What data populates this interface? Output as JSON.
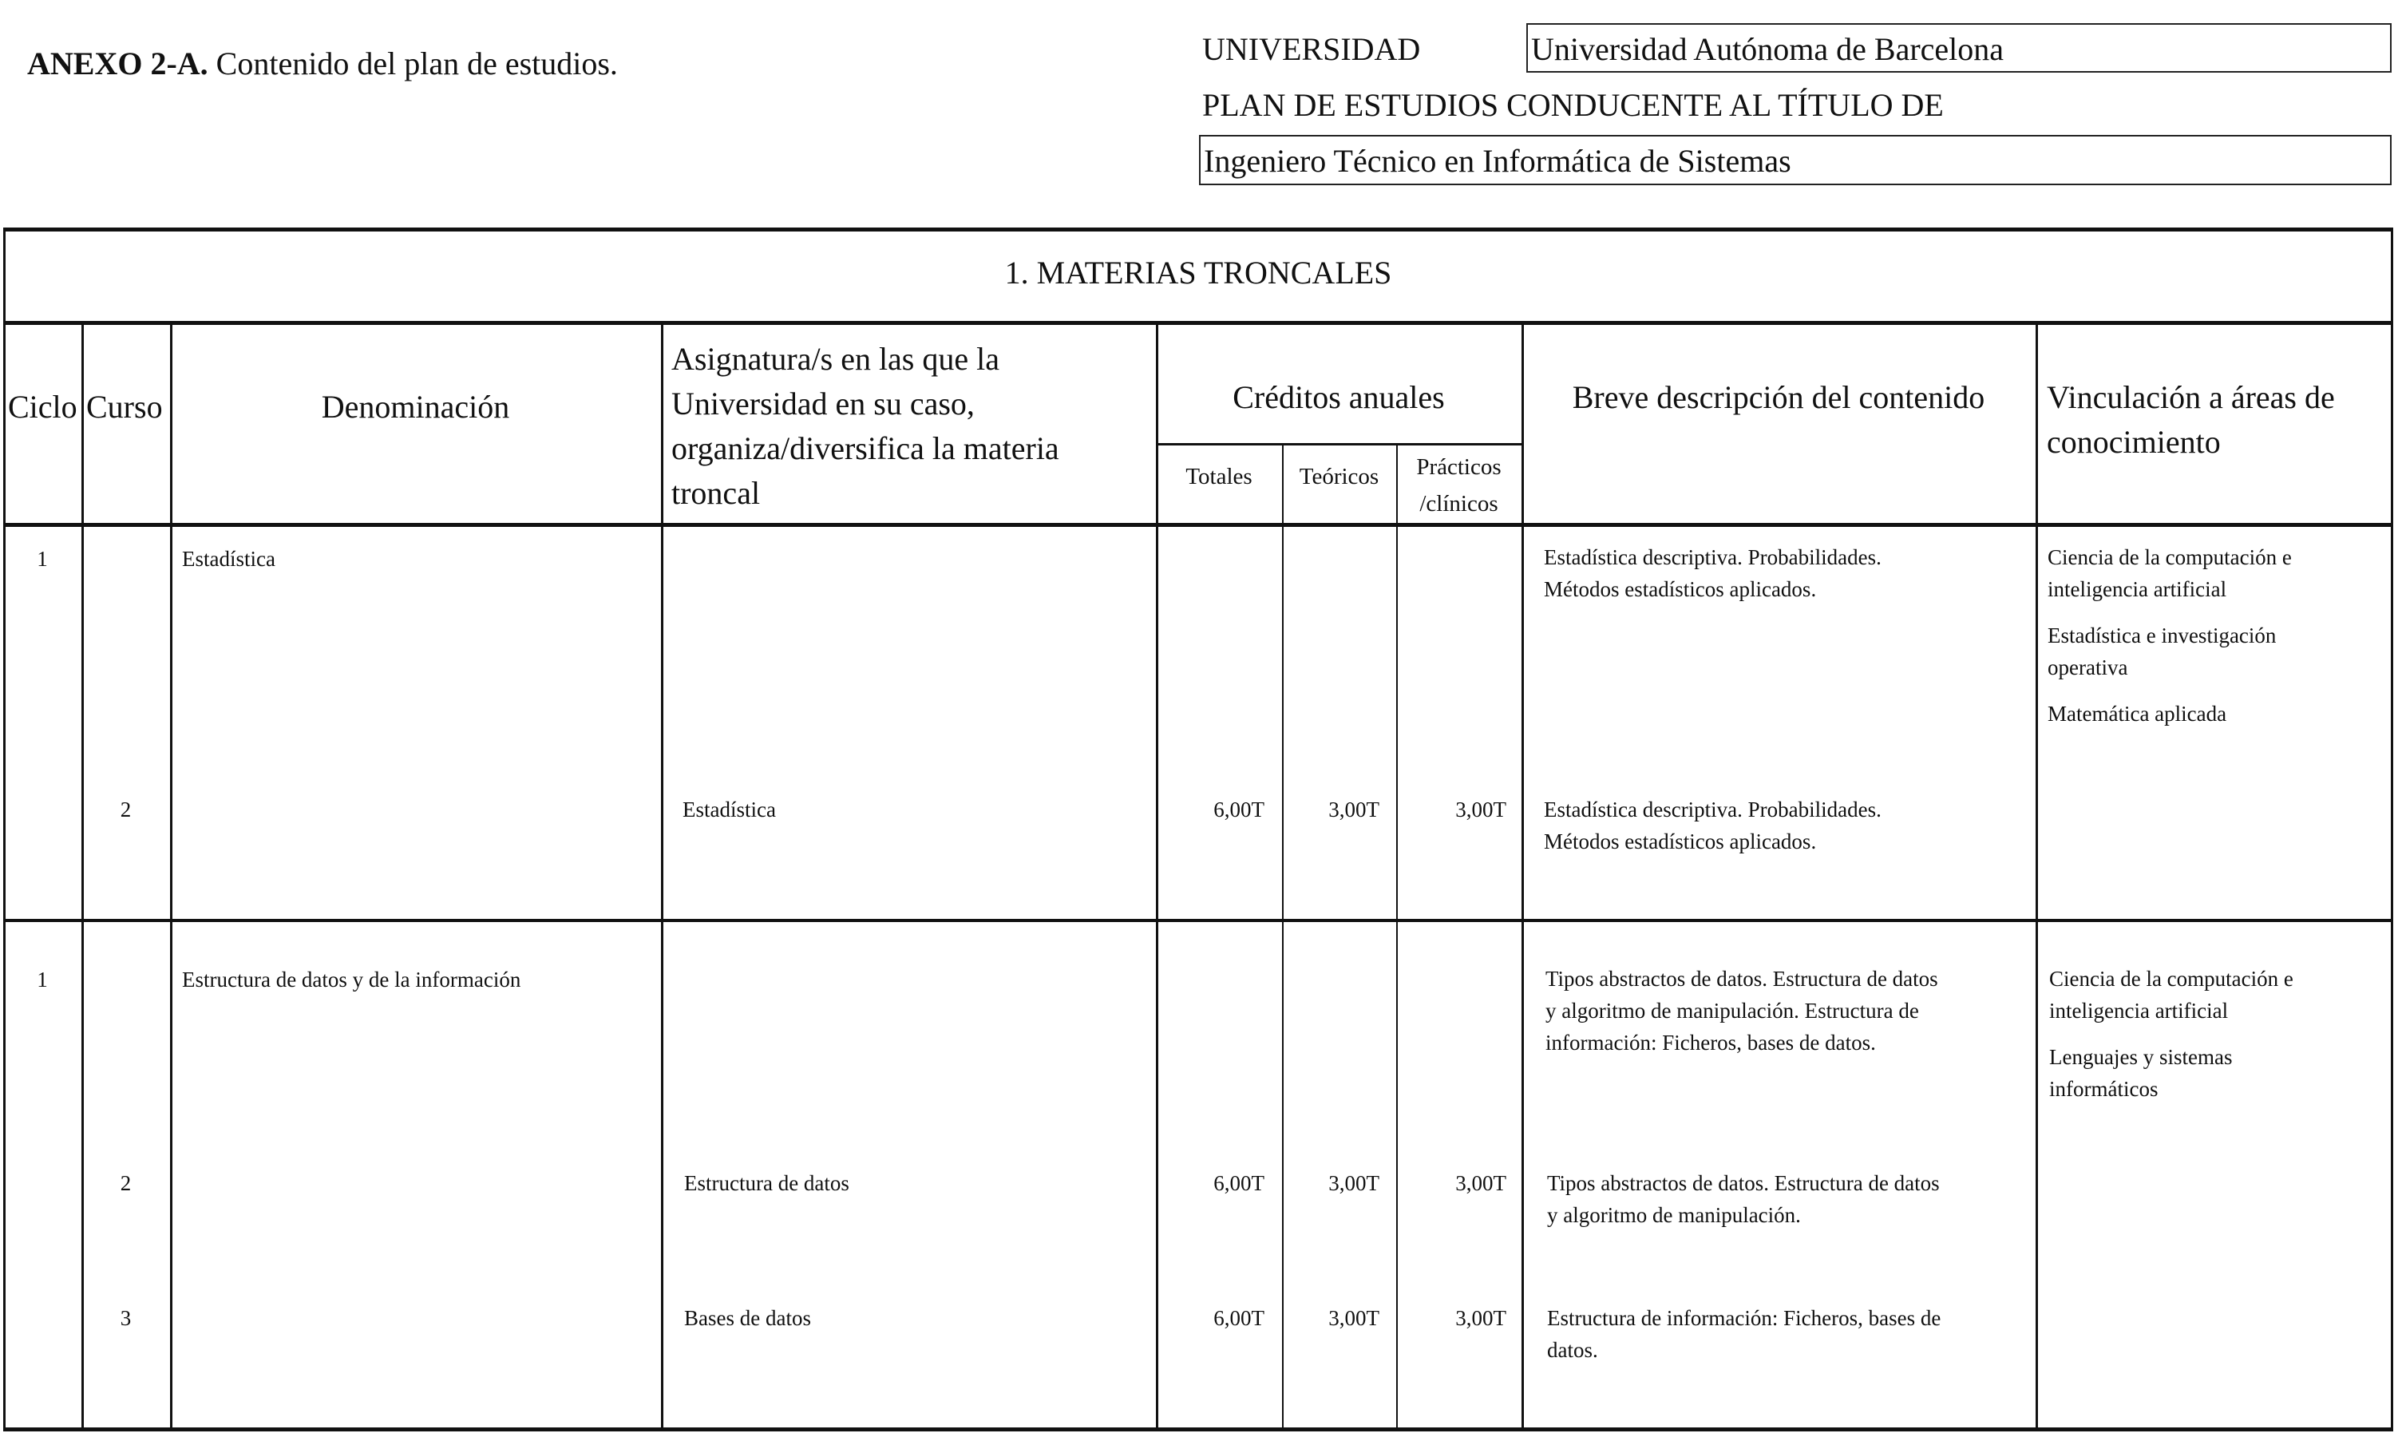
{
  "header": {
    "annex_bold": "ANEXO 2-A.",
    "annex_text": " Contenido del plan de estudios.",
    "university_label": "UNIVERSIDAD",
    "university_value": "Universidad Autónoma de Barcelona",
    "plan_label": "PLAN DE ESTUDIOS CONDUCENTE AL TÍTULO DE",
    "degree_value": "Ingeniero Técnico en Informática de Sistemas"
  },
  "table": {
    "title": "1. MATERIAS TRONCALES",
    "columns": {
      "ciclo": "Ciclo",
      "curso": "Curso",
      "denominacion": "Denominación",
      "asignatura": [
        "Asignatura/s en las que la",
        "Universidad en su caso,",
        "organiza/diversifica la materia",
        "troncal"
      ],
      "creditos": "Créditos anuales",
      "totales": "Totales",
      "teoricos": "Teóricos",
      "practicos": [
        "Prácticos",
        "/clínicos"
      ],
      "descripcion": "Breve descripción del contenido",
      "vinculacion": [
        "Vinculación a áreas de",
        "conocimiento"
      ]
    },
    "rows": [
      {
        "ciclo": "1",
        "denominacion": "Estadística",
        "descripcion": [
          "Estadística descriptiva. Probabilidades.",
          "Métodos estadísticos aplicados."
        ],
        "vinculacion": [
          [
            "Ciencia de la computación e",
            "inteligencia artificial"
          ],
          [
            "Estadística e investigación",
            "operativa"
          ],
          [
            "Matemática aplicada"
          ]
        ],
        "subjects": [
          {
            "curso": "2",
            "asignatura": "Estadística",
            "totales": "6,00T",
            "teoricos": "3,00T",
            "practicos": "3,00T",
            "descripcion": [
              "Estadística descriptiva. Probabilidades.",
              "Métodos estadísticos aplicados."
            ]
          }
        ]
      },
      {
        "ciclo": "1",
        "denominacion": "Estructura de datos y de la información",
        "descripcion": [
          "Tipos abstractos de datos. Estructura de datos",
          "y algoritmo de manipulación. Estructura de",
          "información: Ficheros, bases de datos."
        ],
        "vinculacion": [
          [
            "Ciencia de la computación e",
            "inteligencia artificial"
          ],
          [
            "Lenguajes y sistemas",
            "informáticos"
          ]
        ],
        "subjects": [
          {
            "curso": "2",
            "asignatura": "Estructura de datos",
            "totales": "6,00T",
            "teoricos": "3,00T",
            "practicos": "3,00T",
            "descripcion": [
              "Tipos abstractos de datos. Estructura de datos",
              "y algoritmo de manipulación."
            ]
          },
          {
            "curso": "3",
            "asignatura": "Bases de datos",
            "totales": "6,00T",
            "teoricos": "3,00T",
            "practicos": "3,00T",
            "descripcion": [
              "Estructura de información: Ficheros, bases de",
              "datos."
            ]
          }
        ]
      }
    ]
  }
}
